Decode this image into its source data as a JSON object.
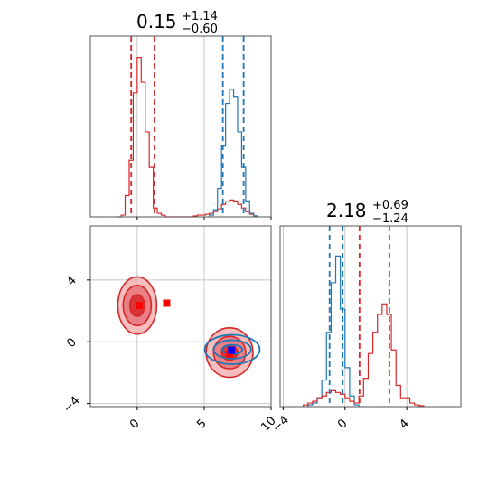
{
  "colors": {
    "red": "#d62728",
    "blue": "#1f77b4",
    "red_marker": "#ff0000",
    "blue_marker": "#0000ff",
    "grid": "#c8c8c8",
    "axis": "#555555"
  },
  "chart_data": [
    {
      "type": "histogram",
      "panel": "top-left marginal",
      "title": {
        "value": "0.15",
        "plus": "+1.14",
        "minus": "−0.60"
      },
      "xlim": [
        -3.5,
        10.0
      ],
      "x_ticks": [
        0,
        5,
        10
      ],
      "grid": true,
      "quantile_lines": {
        "red": [
          -0.45,
          1.29
        ],
        "blue": [
          6.4,
          7.95
        ]
      },
      "series": [
        {
          "color": "red",
          "bins": [
            -1.5,
            -1.2,
            -0.9,
            -0.6,
            -0.3,
            0.0,
            0.3,
            0.6,
            0.9,
            1.2,
            1.5,
            1.8,
            2.1,
            2.4,
            2.7,
            3.0,
            3.3,
            3.6,
            3.9,
            4.2,
            4.5,
            4.8,
            5.1,
            5.4,
            5.7,
            6.0,
            6.3,
            6.6,
            6.9,
            7.2,
            7.5,
            7.8,
            8.1,
            8.4,
            8.7,
            9.0
          ],
          "counts": [
            0,
            0.01,
            0.12,
            0.32,
            0.7,
            0.9,
            0.76,
            0.48,
            0.28,
            0.05,
            0.02,
            0.01,
            0.0,
            0.0,
            0.0,
            0.0,
            0.0,
            0.0,
            0.0,
            0.005,
            0.01,
            0.01,
            0.015,
            0.02,
            0.03,
            0.045,
            0.07,
            0.085,
            0.095,
            0.09,
            0.07,
            0.05,
            0.03,
            0.015,
            0.005
          ]
        },
        {
          "color": "blue",
          "bins": [
            5.4,
            5.7,
            6.0,
            6.3,
            6.6,
            6.9,
            7.2,
            7.5,
            7.8,
            8.1,
            8.4,
            8.7,
            9.0
          ],
          "counts": [
            0.01,
            0.04,
            0.16,
            0.4,
            0.64,
            0.72,
            0.68,
            0.48,
            0.28,
            0.09,
            0.02,
            0.005
          ]
        }
      ]
    },
    {
      "type": "histogram",
      "panel": "bottom-right marginal",
      "title": {
        "value": "2.18",
        "plus": "+0.69",
        "minus": "−1.24"
      },
      "xlim": [
        -4.2,
        7.5
      ],
      "x_ticks": [
        -4,
        0,
        4
      ],
      "grid": true,
      "quantile_lines": {
        "blue": [
          -1.0,
          -0.15
        ],
        "red": [
          0.94,
          2.87
        ]
      },
      "series": [
        {
          "color": "blue",
          "bins": [
            -2.4,
            -2.1,
            -1.8,
            -1.5,
            -1.2,
            -0.9,
            -0.6,
            -0.3,
            0.0,
            0.3,
            0.6,
            0.9
          ],
          "counts": [
            0.01,
            0.02,
            0.05,
            0.15,
            0.42,
            0.7,
            0.85,
            0.55,
            0.22,
            0.06,
            0.01
          ]
        },
        {
          "color": "red",
          "bins": [
            -2.7,
            -2.4,
            -2.1,
            -1.8,
            -1.5,
            -1.2,
            -0.9,
            -0.6,
            -0.3,
            0.0,
            0.3,
            0.6,
            0.9,
            1.2,
            1.5,
            1.8,
            2.1,
            2.4,
            2.7,
            3.0,
            3.3,
            3.6,
            3.9,
            4.2,
            4.5,
            4.8,
            5.1
          ],
          "counts": [
            0.01,
            0.02,
            0.03,
            0.05,
            0.06,
            0.08,
            0.09,
            0.08,
            0.07,
            0.05,
            0.03,
            0.02,
            0.06,
            0.16,
            0.3,
            0.42,
            0.52,
            0.58,
            0.52,
            0.32,
            0.12,
            0.05,
            0.05,
            0.02,
            0.01,
            0.005
          ]
        }
      ]
    },
    {
      "type": "contour",
      "panel": "bottom-left joint",
      "xlim": [
        -3.5,
        10.0
      ],
      "ylim": [
        -4.2,
        7.5
      ],
      "x_ticks": [
        0,
        5,
        10
      ],
      "y_ticks": [
        -4,
        0,
        4
      ],
      "grid": true,
      "regions": [
        {
          "color": "red",
          "center": [
            0.0,
            2.35
          ],
          "rx_levels": [
            1.45,
            1.05,
            0.55
          ],
          "ry_levels": [
            1.85,
            1.3,
            0.7
          ]
        },
        {
          "color": "red",
          "center": [
            6.9,
            -0.7
          ],
          "rx_levels": [
            1.75,
            1.2,
            0.6
          ],
          "ry_levels": [
            1.6,
            1.05,
            0.5
          ]
        },
        {
          "color": "blue",
          "center": [
            7.1,
            -0.5
          ],
          "rx_levels": [
            2.05,
            1.4,
            0.75
          ],
          "ry_levels": [
            0.95,
            0.6,
            0.3
          ]
        }
      ],
      "markers": [
        {
          "color": "red",
          "x": 0.15,
          "y": 2.35
        },
        {
          "color": "red",
          "x": 2.2,
          "y": 2.5
        },
        {
          "color": "red",
          "x": 6.9,
          "y": -0.8
        },
        {
          "color": "blue",
          "x": 7.05,
          "y": -0.55
        }
      ]
    }
  ]
}
